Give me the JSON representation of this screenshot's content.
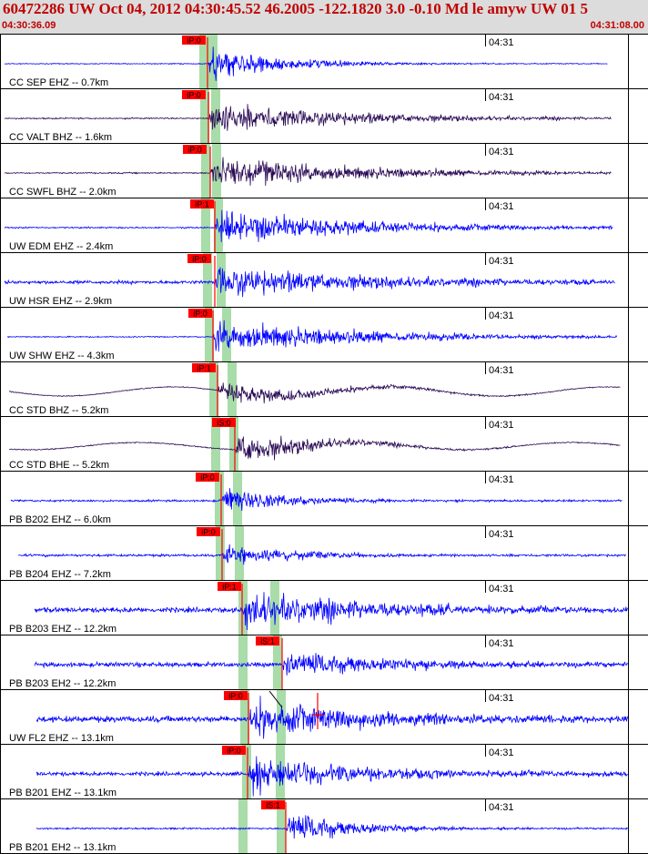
{
  "header": {
    "title": "60472286 UW Oct 04, 2012 04:30:45.52   46.2005 -122.1820  3.0 -0.10 Md le amyw UW 01   5",
    "start_time": "04:30:36.09",
    "end_time": "04:31:08.00"
  },
  "colors": {
    "blue_trace": "#0000ff",
    "purple_trace": "#2a0a55",
    "pick_box": "#ff0000",
    "pick_window": "#a8dca8",
    "header_text": "#c00000"
  },
  "minute_label": "04:31",
  "traces": [
    {
      "label": "CC SEP EHZ -- 0.7km",
      "pick": "iP:0",
      "color": "blue"
    },
    {
      "label": "CC VALT BHZ -- 1.6km",
      "pick": "iP:0",
      "color": "purple"
    },
    {
      "label": "CC SWFL BHZ -- 2.0km",
      "pick": "iP:0",
      "color": "purple"
    },
    {
      "label": "UW EDM EHZ -- 2.4km",
      "pick": "iP:1",
      "color": "blue"
    },
    {
      "label": "UW HSR EHZ -- 2.9km",
      "pick": "iP:0",
      "color": "blue"
    },
    {
      "label": "UW SHW EHZ -- 4.3km",
      "pick": "iP:0",
      "color": "blue"
    },
    {
      "label": "CC STD BHZ -- 5.2km",
      "pick": "iP:1",
      "color": "purple"
    },
    {
      "label": "CC STD BHE -- 5.2km",
      "pick": "iS:0",
      "color": "purple"
    },
    {
      "label": "PB B202 EHZ -- 6.0km",
      "pick": "iP:0",
      "color": "blue"
    },
    {
      "label": "PB B204 EHZ -- 7.2km",
      "pick": "iP:0",
      "color": "blue"
    },
    {
      "label": "PB B203 EHZ -- 12.2km",
      "pick": "iP:1",
      "color": "blue"
    },
    {
      "label": "PB B203 EH2 -- 12.2km",
      "pick": "iS:1",
      "color": "blue"
    },
    {
      "label": "UW FL2 EHZ -- 13.1km",
      "pick": "iP:0",
      "color": "blue"
    },
    {
      "label": "PB B201 EHZ -- 13.1km",
      "pick": "iP:0",
      "color": "blue"
    },
    {
      "label": "PB B201 EH2 -- 13.1km",
      "pick": "iS:1",
      "color": "blue"
    }
  ]
}
